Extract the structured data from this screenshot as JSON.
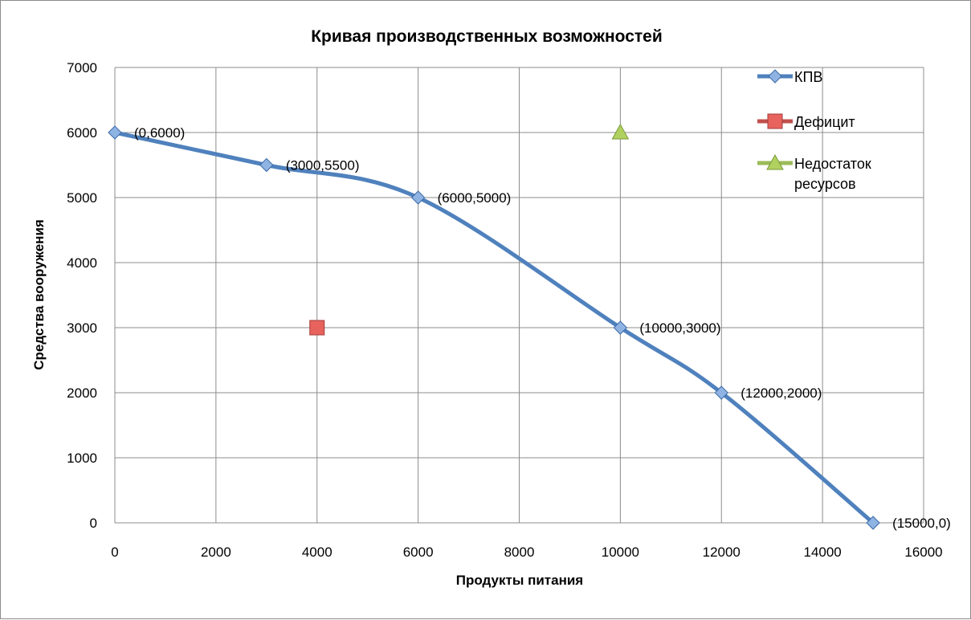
{
  "chart_data": {
    "type": "scatter",
    "title": "Кривая производственных возможностей",
    "xlabel": "Продукты питания",
    "ylabel": "Средства вооружения",
    "xlim": [
      0,
      16000
    ],
    "ylim": [
      0,
      7000
    ],
    "x_ticks": [
      0,
      2000,
      4000,
      6000,
      8000,
      10000,
      12000,
      14000,
      16000
    ],
    "y_ticks": [
      0,
      1000,
      2000,
      3000,
      4000,
      5000,
      6000,
      7000
    ],
    "grid": true,
    "legend_position": "right",
    "series": [
      {
        "name": "КПВ",
        "color": "#4f81bd",
        "marker": "diamond",
        "smooth": true,
        "points": [
          {
            "x": 0,
            "y": 6000,
            "label": "(0,6000)"
          },
          {
            "x": 3000,
            "y": 5500,
            "label": "(3000,5500)"
          },
          {
            "x": 6000,
            "y": 5000,
            "label": "(6000,5000)"
          },
          {
            "x": 10000,
            "y": 3000,
            "label": "(10000,3000)"
          },
          {
            "x": 12000,
            "y": 2000,
            "label": "(12000,2000)"
          },
          {
            "x": 15000,
            "y": 0,
            "label": "(15000,0)"
          }
        ]
      },
      {
        "name": "Дефицит",
        "color": "#c0504d",
        "marker": "square",
        "points": [
          {
            "x": 4000,
            "y": 3000
          }
        ]
      },
      {
        "name": "Недостаток ресурсов",
        "name_lines": [
          "Недостаток",
          "ресурсов"
        ],
        "color": "#9bbb59",
        "marker": "triangle",
        "points": [
          {
            "x": 10000,
            "y": 6000
          }
        ]
      }
    ]
  }
}
